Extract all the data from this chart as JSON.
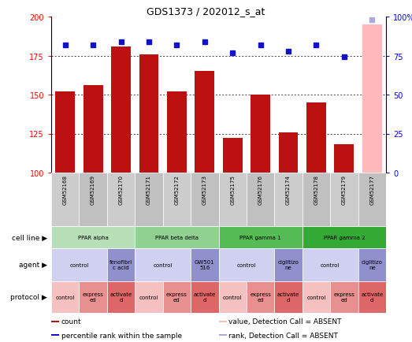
{
  "title": "GDS1373 / 202012_s_at",
  "samples": [
    "GSM52168",
    "GSM52169",
    "GSM52170",
    "GSM52171",
    "GSM52172",
    "GSM52173",
    "GSM52175",
    "GSM52176",
    "GSM52174",
    "GSM52178",
    "GSM52179",
    "GSM52177"
  ],
  "count_values": [
    152,
    156,
    181,
    176,
    152,
    165,
    122,
    150,
    126,
    145,
    118,
    195
  ],
  "percentile_values": [
    82,
    82,
    84,
    84,
    82,
    84,
    77,
    82,
    78,
    82,
    74,
    98
  ],
  "absent_flags": [
    false,
    false,
    false,
    false,
    false,
    false,
    false,
    false,
    false,
    false,
    false,
    true
  ],
  "ylim_left": [
    100,
    200
  ],
  "ylim_right": [
    0,
    100
  ],
  "yticks_left": [
    100,
    125,
    150,
    175,
    200
  ],
  "yticks_right": [
    0,
    25,
    50,
    75,
    100
  ],
  "cell_lines": [
    {
      "label": "PPAR alpha",
      "span": [
        0,
        3
      ],
      "color": "#b8e0b8"
    },
    {
      "label": "PPAR beta delta",
      "span": [
        3,
        6
      ],
      "color": "#90d090"
    },
    {
      "label": "PPAR gamma 1",
      "span": [
        6,
        9
      ],
      "color": "#55bb55"
    },
    {
      "label": "PPAR gamma 2",
      "span": [
        9,
        12
      ],
      "color": "#33aa33"
    }
  ],
  "agents": [
    {
      "label": "control",
      "span": [
        0,
        2
      ],
      "color": "#d0d0f0"
    },
    {
      "label": "fenofibri\nc acid",
      "span": [
        2,
        3
      ],
      "color": "#9090cc"
    },
    {
      "label": "control",
      "span": [
        3,
        5
      ],
      "color": "#d0d0f0"
    },
    {
      "label": "GW501\n516",
      "span": [
        5,
        6
      ],
      "color": "#9090cc"
    },
    {
      "label": "control",
      "span": [
        6,
        8
      ],
      "color": "#d0d0f0"
    },
    {
      "label": "ciglitizo\nne",
      "span": [
        8,
        9
      ],
      "color": "#9090cc"
    },
    {
      "label": "control",
      "span": [
        9,
        11
      ],
      "color": "#d0d0f0"
    },
    {
      "label": "ciglitizo\nne",
      "span": [
        11,
        12
      ],
      "color": "#9090cc"
    }
  ],
  "protocols": [
    {
      "label": "control",
      "span": [
        0,
        1
      ],
      "color": "#f5c0c0"
    },
    {
      "label": "express\ned",
      "span": [
        1,
        2
      ],
      "color": "#e89090"
    },
    {
      "label": "activate\nd",
      "span": [
        2,
        3
      ],
      "color": "#dd6666"
    },
    {
      "label": "control",
      "span": [
        3,
        4
      ],
      "color": "#f5c0c0"
    },
    {
      "label": "express\ned",
      "span": [
        4,
        5
      ],
      "color": "#e89090"
    },
    {
      "label": "activate\nd",
      "span": [
        5,
        6
      ],
      "color": "#dd6666"
    },
    {
      "label": "control",
      "span": [
        6,
        7
      ],
      "color": "#f5c0c0"
    },
    {
      "label": "express\ned",
      "span": [
        7,
        8
      ],
      "color": "#e89090"
    },
    {
      "label": "activate\nd",
      "span": [
        8,
        9
      ],
      "color": "#dd6666"
    },
    {
      "label": "control",
      "span": [
        9,
        10
      ],
      "color": "#f5c0c0"
    },
    {
      "label": "express\ned",
      "span": [
        10,
        11
      ],
      "color": "#e89090"
    },
    {
      "label": "activate\nd",
      "span": [
        11,
        12
      ],
      "color": "#dd6666"
    }
  ],
  "bar_color": "#bb1111",
  "bar_color_absent": "#ffbbbb",
  "dot_color": "#1111cc",
  "dot_color_absent": "#aaaadd",
  "bg_color": "#ffffff",
  "sample_bg_color": "#cccccc",
  "legend_items": [
    {
      "color": "#bb1111",
      "label": "count"
    },
    {
      "color": "#1111cc",
      "label": "percentile rank within the sample"
    },
    {
      "color": "#ffbbbb",
      "label": "value, Detection Call = ABSENT"
    },
    {
      "color": "#aaaadd",
      "label": "rank, Detection Call = ABSENT"
    }
  ]
}
